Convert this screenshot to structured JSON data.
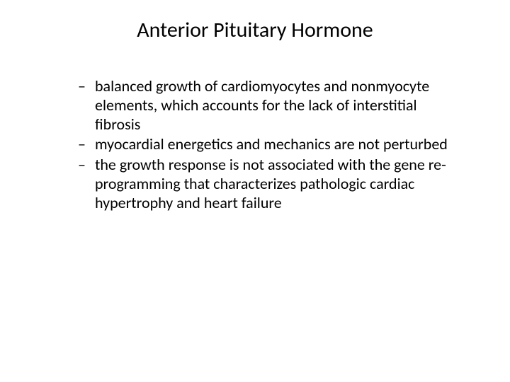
{
  "slide": {
    "title": "Anterior Pituitary Hormone",
    "bullets": [
      "balanced growth of cardiomyocytes and nonmyocyte elements, which accounts for the lack of interstitial fibrosis",
      "myocardial energetics and mechanics are not perturbed",
      "the growth response is not associated with the gene re-programming that characterizes pathologic cardiac hypertrophy and heart failure"
    ],
    "bullet_marker": "–"
  },
  "style": {
    "background_color": "#ffffff",
    "text_color": "#000000",
    "title_fontsize": 30,
    "body_fontsize": 22,
    "font_family": "Calibri"
  }
}
